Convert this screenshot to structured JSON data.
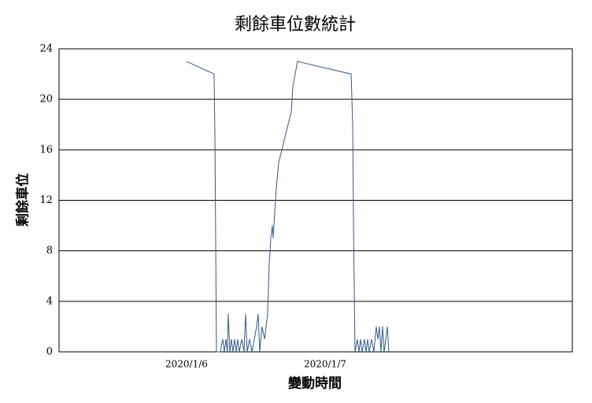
{
  "chart_data": {
    "type": "line",
    "title": "剩餘車位數統計",
    "x_label": "變動時間",
    "y_label": "剩餘車位",
    "x": [
      6.0,
      6.199,
      6.205,
      6.216,
      6.244,
      6.261,
      6.273,
      6.284,
      6.295,
      6.301,
      6.313,
      6.324,
      6.335,
      6.347,
      6.358,
      6.369,
      6.381,
      6.398,
      6.415,
      6.426,
      6.438,
      6.455,
      6.472,
      6.489,
      6.506,
      6.517,
      6.528,
      6.545,
      6.563,
      6.574,
      6.585,
      6.597,
      6.608,
      6.619,
      6.625,
      6.636,
      6.648,
      6.665,
      6.688,
      6.71,
      6.733,
      6.756,
      6.767,
      6.784,
      6.801,
      7.188,
      7.199,
      7.205,
      7.216,
      7.233,
      7.244,
      7.256,
      7.267,
      7.284,
      7.295,
      7.307,
      7.318,
      7.335,
      7.352,
      7.369,
      7.381,
      7.392,
      7.403,
      7.415,
      7.426,
      7.438,
      7.449,
      7.46
    ],
    "series": [
      {
        "color": "#36598a",
        "values": [
          23,
          22,
          17,
          0,
          0,
          1,
          0,
          1,
          0,
          3,
          0,
          1,
          0,
          1,
          0,
          1,
          0,
          1,
          0,
          3,
          0,
          1,
          0,
          1,
          2,
          3,
          0,
          2,
          1,
          2,
          3,
          7,
          9,
          10,
          9,
          11,
          13,
          15,
          16,
          17,
          18,
          19,
          21,
          22,
          23,
          22,
          18,
          10,
          0,
          1,
          0,
          1,
          0,
          1,
          0,
          1,
          0,
          1,
          0,
          2,
          1,
          2,
          0,
          2,
          0,
          1,
          2,
          0
        ]
      }
    ],
    "xlim": [
      5.08,
      8.784
    ],
    "xticks": [
      {
        "value": 6,
        "label": "2020/1/6"
      },
      {
        "value": 7,
        "label": "2020/1/7"
      }
    ],
    "ylim": [
      0,
      24
    ],
    "yticks": [
      0,
      4,
      8,
      12,
      16,
      20,
      24
    ],
    "grid": true
  }
}
